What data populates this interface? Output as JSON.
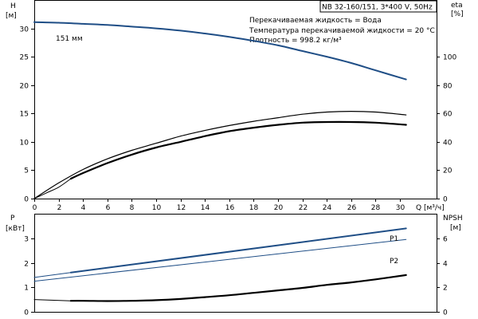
{
  "chart_data": [
    {
      "type": "line",
      "title_box": "NB 32-160/151, 3*400 V, 50Hz",
      "annotations": [
        "Перекачиваемая жидкость = Вода",
        "Температура перекачиваемой жидкости = 20 °C",
        "Плотность = 998.2 кг/м³"
      ],
      "left_axis": {
        "label_line1": "H",
        "label_line2": "[м]",
        "ylim": [
          0,
          35
        ],
        "ticks": [
          0,
          5,
          10,
          15,
          20,
          25,
          30
        ]
      },
      "right_axis": {
        "label_line1": "eta",
        "label_line2": "[%]",
        "ylim": [
          0,
          140
        ],
        "ticks": [
          0,
          20,
          40,
          60,
          80,
          100
        ]
      },
      "x_axis": {
        "label": "Q [м³/ч]",
        "xlim": [
          0,
          33
        ],
        "ticks": [
          0,
          2,
          4,
          6,
          8,
          10,
          12,
          14,
          16,
          18,
          20,
          22,
          24,
          26,
          28,
          30
        ]
      },
      "series": [
        {
          "name": "151 мм",
          "axis": "left",
          "color": "#1f4e86",
          "width": 2,
          "x": [
            0,
            2,
            4,
            6,
            8,
            10,
            12,
            14,
            16,
            18,
            20,
            22,
            24,
            26,
            28,
            30.5
          ],
          "values": [
            31.1,
            31.0,
            30.8,
            30.6,
            30.3,
            30.0,
            29.6,
            29.1,
            28.5,
            27.8,
            27.0,
            26.0,
            25.0,
            23.9,
            22.6,
            21.0
          ]
        },
        {
          "axis": "right",
          "color": "#000000",
          "width": 1.2,
          "x": [
            0,
            2,
            4,
            6,
            8,
            10,
            12,
            14,
            16,
            18,
            20,
            22,
            24,
            26,
            28,
            30.5
          ],
          "values": [
            0,
            11,
            20.5,
            28,
            34,
            39,
            44,
            48,
            51.5,
            54.5,
            57,
            59.5,
            61,
            61.5,
            61,
            59
          ]
        },
        {
          "axis": "right",
          "color": "#000000",
          "width": 2.2,
          "x": [
            3,
            4,
            6,
            8,
            10,
            12,
            14,
            16,
            18,
            20,
            22,
            24,
            26,
            28,
            30.5
          ],
          "values": [
            14,
            18,
            25,
            31,
            36,
            40,
            44,
            47.5,
            50,
            52,
            53.5,
            54,
            54,
            53.5,
            52
          ]
        },
        {
          "axis": "right",
          "color": "#000000",
          "width": 1,
          "x": [
            0,
            1,
            2,
            3
          ],
          "values": [
            0,
            4,
            8,
            14
          ]
        }
      ]
    },
    {
      "type": "line",
      "left_axis": {
        "label_line1": "P",
        "label_line2": "[кВт]",
        "ylim": [
          0,
          4
        ],
        "ticks": [
          0,
          1,
          2,
          3
        ]
      },
      "right_axis": {
        "label_line1": "NPSH",
        "label_line2": "[м]",
        "ylim": [
          0,
          8
        ],
        "ticks": [
          0,
          2,
          4,
          6
        ]
      },
      "x_axis": {
        "xlim": [
          0,
          33
        ]
      },
      "series": [
        {
          "name": "P1",
          "axis": "left",
          "color": "#1f4e86",
          "width": 2,
          "x": [
            3,
            30.5
          ],
          "values": [
            1.6,
            3.4
          ]
        },
        {
          "axis": "left",
          "color": "#1f4e86",
          "width": 1,
          "x": [
            0,
            3
          ],
          "values": [
            1.4,
            1.6
          ]
        },
        {
          "name": "P2",
          "axis": "left",
          "color": "#1f4e86",
          "width": 1,
          "x": [
            0,
            30.5
          ],
          "values": [
            1.25,
            2.95
          ]
        },
        {
          "axis": "right",
          "color": "#000000",
          "width": 2.2,
          "x": [
            3,
            4,
            6,
            8,
            10,
            12,
            14,
            16,
            18,
            20,
            22,
            24,
            26,
            28,
            30.5
          ],
          "values": [
            0.9,
            0.9,
            0.88,
            0.9,
            0.95,
            1.05,
            1.2,
            1.35,
            1.55,
            1.75,
            1.95,
            2.2,
            2.4,
            2.65,
            3.0
          ]
        },
        {
          "axis": "right",
          "color": "#000000",
          "width": 1,
          "x": [
            0,
            3
          ],
          "values": [
            1.0,
            0.9
          ]
        }
      ]
    }
  ]
}
